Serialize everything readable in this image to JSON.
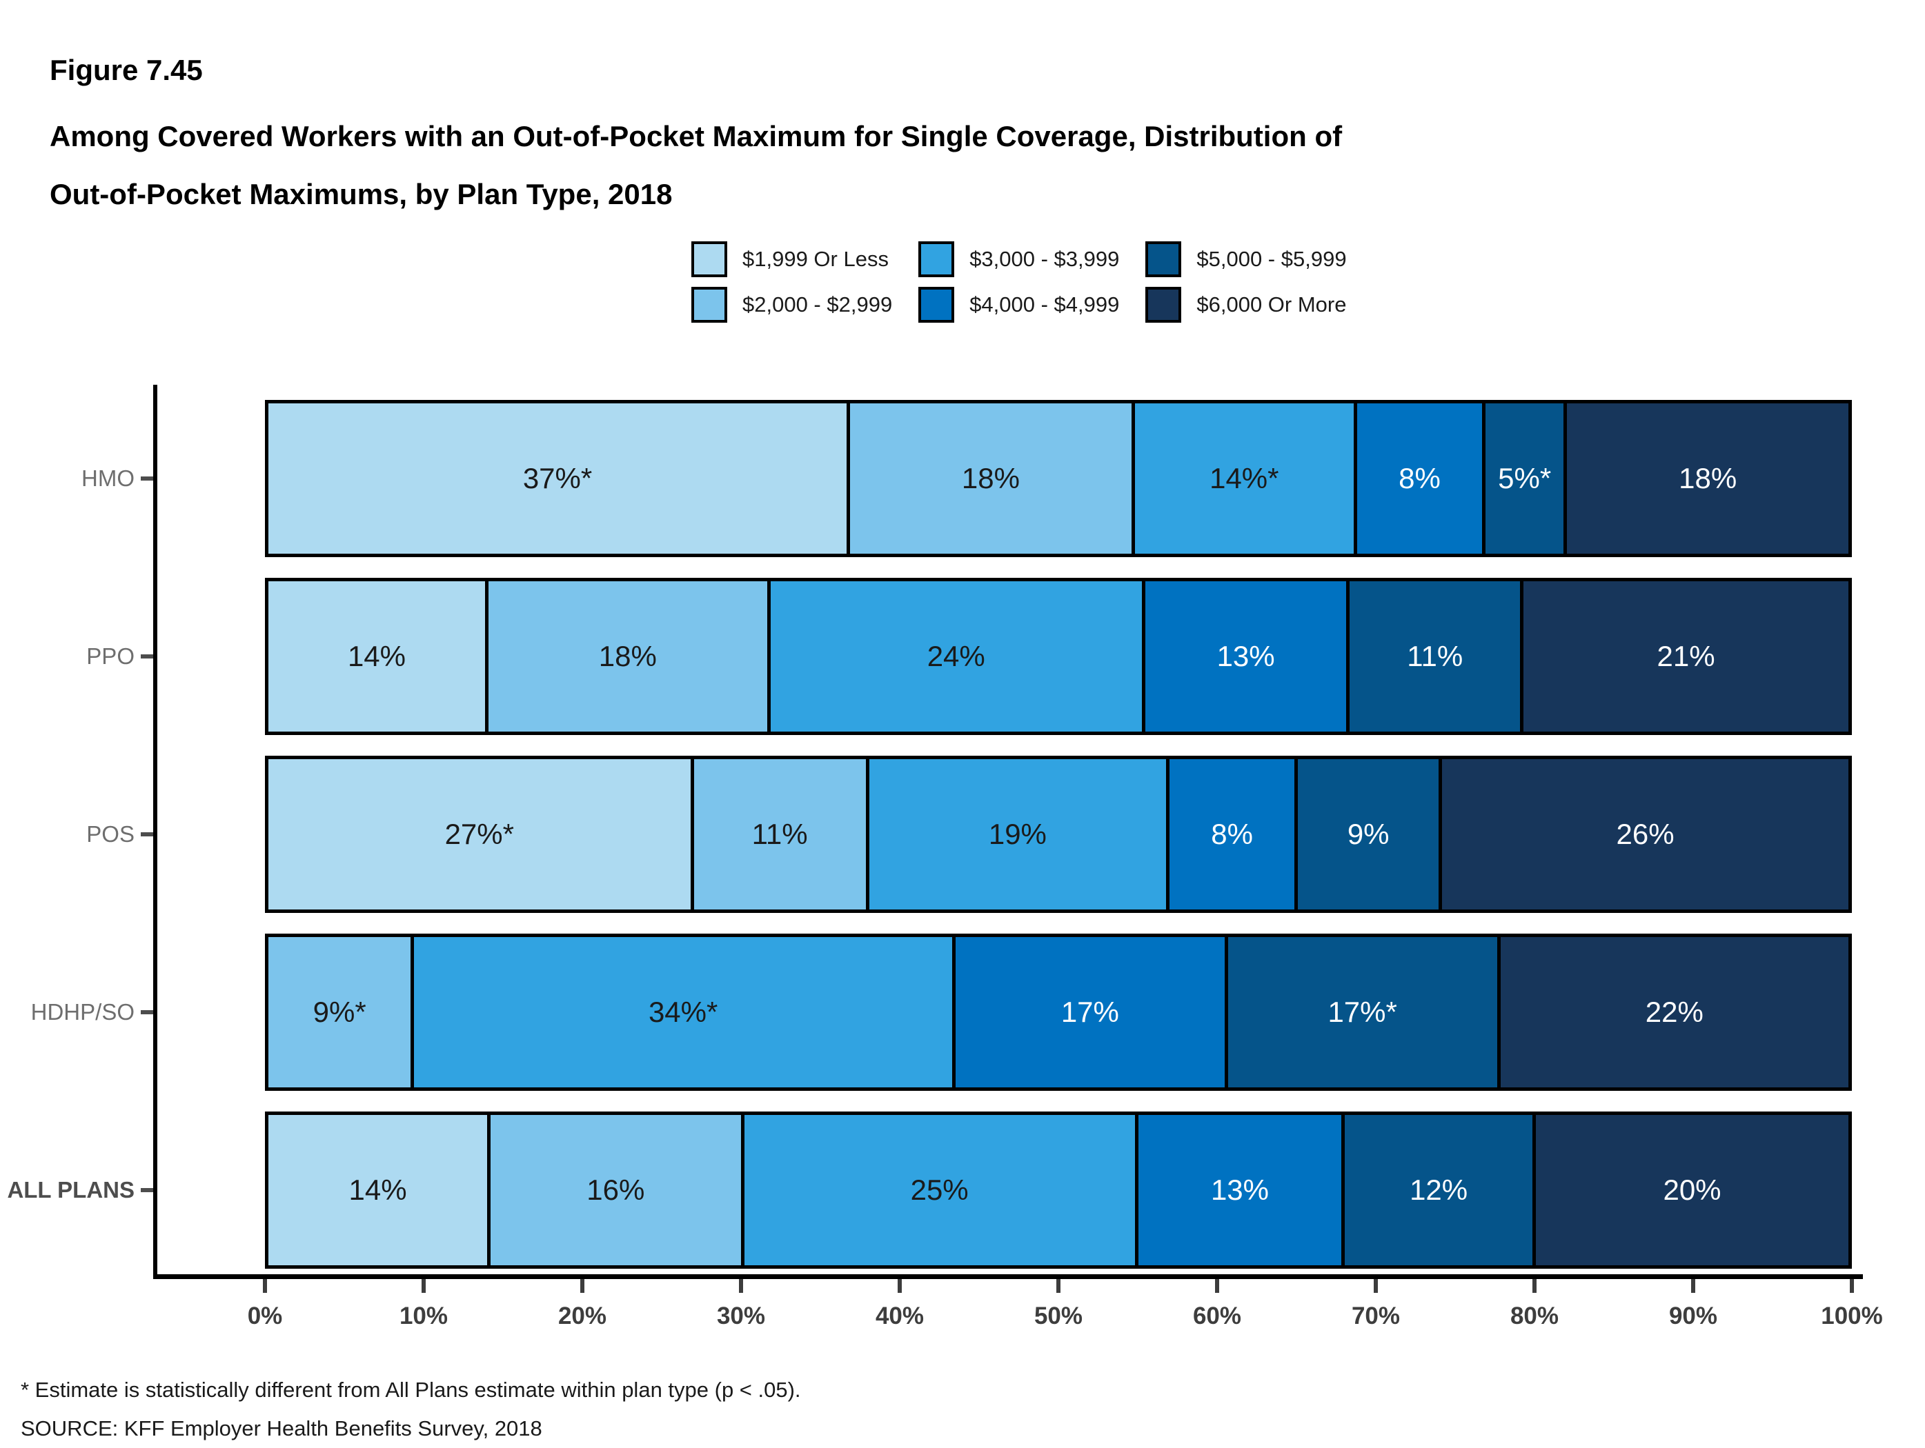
{
  "header": {
    "figure_label": "Figure 7.45",
    "title_line1": "Among Covered Workers with an Out-of-Pocket Maximum for Single Coverage, Distribution of",
    "title_line2": "Out-of-Pocket Maximums, by Plan Type, 2018"
  },
  "footnotes": {
    "asterisk": "* Estimate is statistically different from All Plans estimate within plan type (p < .05).",
    "source": "SOURCE: KFF Employer Health Benefits Survey, 2018"
  },
  "chart_data": {
    "type": "bar",
    "orientation": "horizontal-stacked",
    "title": "Among Covered Workers with an Out-of-Pocket Maximum for Single Coverage, Distribution of Out-of-Pocket Maximums, by Plan Type, 2018",
    "legend_position": "top",
    "grid": false,
    "xlim": [
      0,
      100
    ],
    "x_ticks": [
      "0%",
      "10%",
      "20%",
      "30%",
      "40%",
      "50%",
      "60%",
      "70%",
      "80%",
      "90%",
      "100%"
    ],
    "series_labels": [
      "$1,999 Or Less",
      "$2,000 - $2,999",
      "$3,000 - $3,999",
      "$4,000 - $4,999",
      "$5,000 - $5,999",
      "$6,000 Or More"
    ],
    "series_colors": [
      "#ADDAF1",
      "#7CC4EC",
      "#31A3E1",
      "#0072C1",
      "#05548A",
      "#17365B"
    ],
    "series_label_text_colors": [
      "#1a1a1a",
      "#1a1a1a",
      "#1a1a1a",
      "#ffffff",
      "#ffffff",
      "#ffffff"
    ],
    "categories": [
      "HMO",
      "PPO",
      "POS",
      "HDHP/SO",
      "ALL PLANS"
    ],
    "rows": [
      {
        "category": "HMO",
        "emphasis": false,
        "segments": [
          {
            "series": 0,
            "value": 37,
            "label": "37%*"
          },
          {
            "series": 1,
            "value": 18,
            "label": "18%"
          },
          {
            "series": 2,
            "value": 14,
            "label": "14%*"
          },
          {
            "series": 3,
            "value": 8,
            "label": "8%"
          },
          {
            "series": 4,
            "value": 5,
            "label": "5%*"
          },
          {
            "series": 5,
            "value": 18,
            "label": "18%"
          }
        ]
      },
      {
        "category": "PPO",
        "emphasis": false,
        "segments": [
          {
            "series": 0,
            "value": 14,
            "label": "14%"
          },
          {
            "series": 1,
            "value": 18,
            "label": "18%"
          },
          {
            "series": 2,
            "value": 24,
            "label": "24%"
          },
          {
            "series": 3,
            "value": 13,
            "label": "13%"
          },
          {
            "series": 4,
            "value": 11,
            "label": "11%"
          },
          {
            "series": 5,
            "value": 21,
            "label": "21%"
          }
        ]
      },
      {
        "category": "POS",
        "emphasis": false,
        "segments": [
          {
            "series": 0,
            "value": 27,
            "label": "27%*"
          },
          {
            "series": 1,
            "value": 11,
            "label": "11%"
          },
          {
            "series": 2,
            "value": 19,
            "label": "19%"
          },
          {
            "series": 3,
            "value": 8,
            "label": "8%"
          },
          {
            "series": 4,
            "value": 9,
            "label": "9%"
          },
          {
            "series": 5,
            "value": 26,
            "label": "26%"
          }
        ]
      },
      {
        "category": "HDHP/SO",
        "emphasis": false,
        "segments": [
          {
            "series": 1,
            "value": 9,
            "label": "9%*"
          },
          {
            "series": 2,
            "value": 34,
            "label": "34%*"
          },
          {
            "series": 3,
            "value": 17,
            "label": "17%"
          },
          {
            "series": 4,
            "value": 17,
            "label": "17%*"
          },
          {
            "series": 5,
            "value": 22,
            "label": "22%"
          }
        ]
      },
      {
        "category": "ALL PLANS",
        "emphasis": true,
        "segments": [
          {
            "series": 0,
            "value": 14,
            "label": "14%"
          },
          {
            "series": 1,
            "value": 16,
            "label": "16%"
          },
          {
            "series": 2,
            "value": 25,
            "label": "25%"
          },
          {
            "series": 3,
            "value": 13,
            "label": "13%"
          },
          {
            "series": 4,
            "value": 12,
            "label": "12%"
          },
          {
            "series": 5,
            "value": 20,
            "label": "20%"
          }
        ]
      }
    ]
  }
}
